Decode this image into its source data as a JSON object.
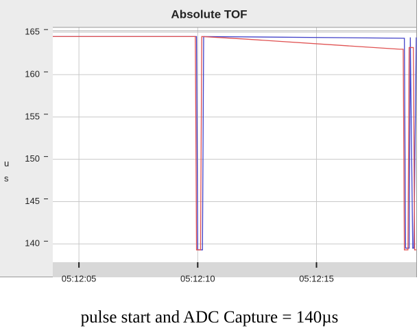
{
  "chart_data": {
    "type": "line",
    "title": "Absolute TOF",
    "ylabel": "us",
    "ylim": [
      138,
      165.5
    ],
    "yticks": [
      140,
      145,
      150,
      155,
      160,
      165
    ],
    "xlim": [
      3.9,
      19.2
    ],
    "xticks": [
      {
        "value": 5,
        "label": "05:12:05"
      },
      {
        "value": 10,
        "label": "05:12:10"
      },
      {
        "value": 15,
        "label": "05:12:15"
      }
    ],
    "grid": true,
    "series": [
      {
        "color": "#4040c8",
        "x": [
          3.9,
          9.95,
          10.0,
          10.2,
          10.25,
          18.7,
          18.75,
          18.9,
          18.95,
          19.05,
          19.1,
          19.2
        ],
        "values": [
          164.5,
          164.5,
          139.3,
          139.3,
          164.5,
          164.3,
          139.5,
          139.5,
          164.4,
          139.5,
          139.5,
          164.4
        ]
      },
      {
        "color": "#e05050",
        "x": [
          3.9,
          9.9,
          9.95,
          10.12,
          10.17,
          12,
          18.5,
          18.65,
          18.7,
          18.85,
          18.9,
          19.08,
          19.13,
          19.2
        ],
        "values": [
          164.5,
          164.5,
          139.3,
          139.3,
          164.5,
          164.2,
          163.0,
          163.0,
          139.3,
          139.3,
          163.2,
          163.2,
          139.3,
          139.3
        ]
      }
    ]
  },
  "caption": "pulse start and ADC Capture = 140µs"
}
